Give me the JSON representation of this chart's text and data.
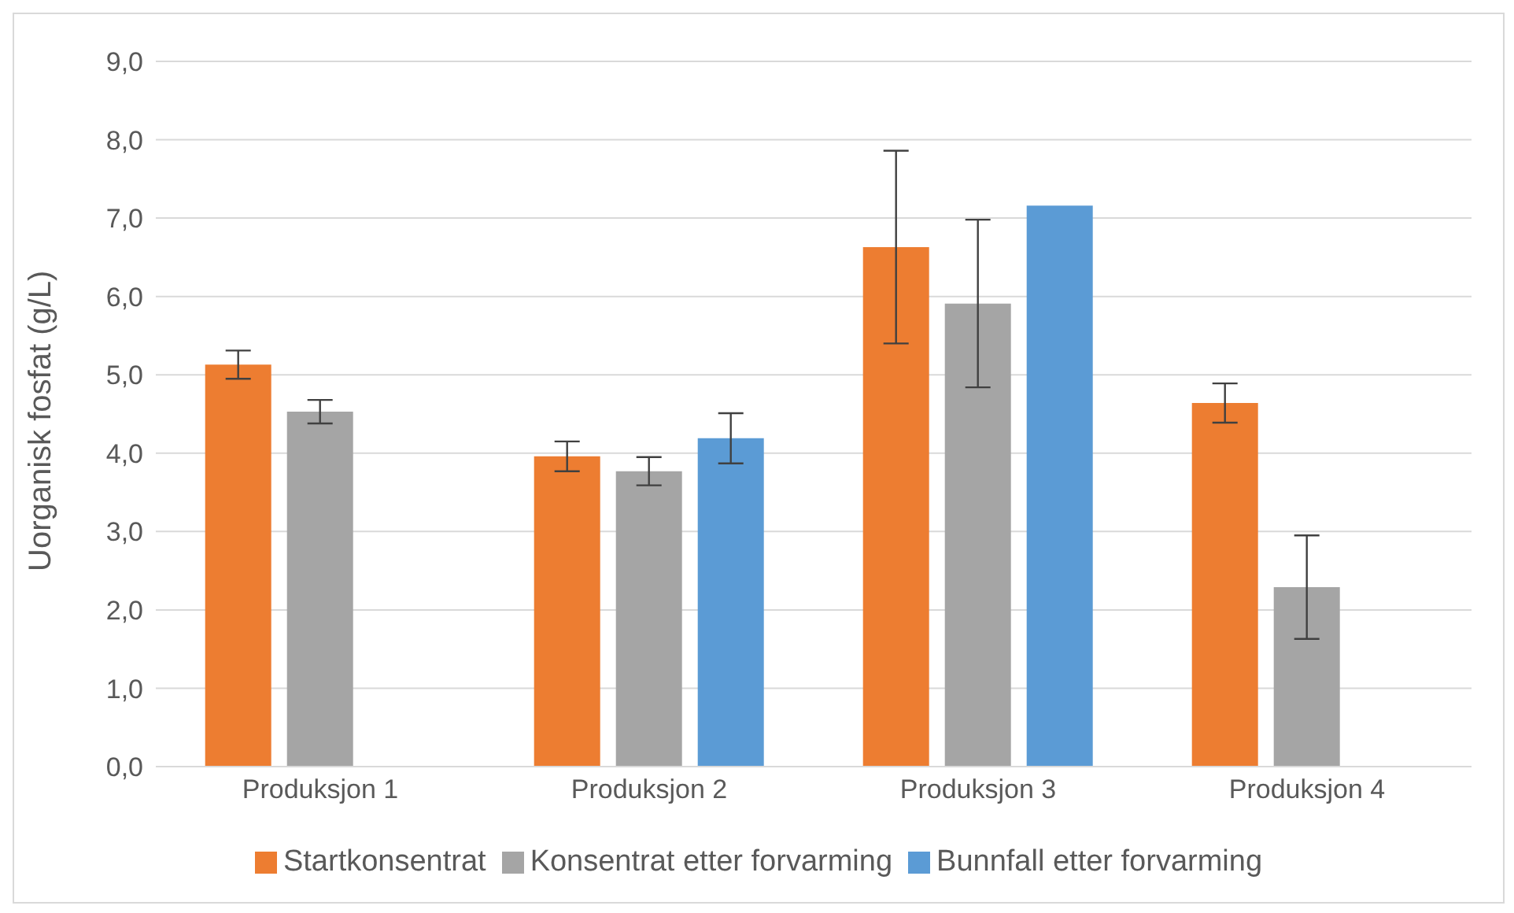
{
  "chart_data": {
    "type": "bar",
    "ylabel": "Uorganisk fosfat (g/L)",
    "categories": [
      "Produksjon 1",
      "Produksjon 2",
      "Produksjon 3",
      "Produksjon 4"
    ],
    "series": [
      {
        "name": "Startkonsentrat",
        "color": "#ed7d31",
        "values": [
          5.13,
          3.96,
          6.63,
          4.64
        ],
        "errors": [
          0.18,
          0.19,
          1.23,
          0.25
        ]
      },
      {
        "name": "Konsentrat etter forvarming",
        "color": "#a5a5a5",
        "values": [
          4.53,
          3.77,
          5.91,
          2.29
        ],
        "errors": [
          0.15,
          0.18,
          1.07,
          0.66
        ]
      },
      {
        "name": "Bunnfall etter forvarming",
        "color": "#5b9bd5",
        "values": [
          null,
          4.19,
          7.16,
          null
        ],
        "errors": [
          null,
          0.32,
          null,
          null
        ]
      }
    ],
    "ylim": [
      0,
      9
    ],
    "yticks": [
      {
        "value": 0,
        "label": "0,0"
      },
      {
        "value": 1,
        "label": "1,0"
      },
      {
        "value": 2,
        "label": "2,0"
      },
      {
        "value": 3,
        "label": "3,0"
      },
      {
        "value": 4,
        "label": "4,0"
      },
      {
        "value": 5,
        "label": "5,0"
      },
      {
        "value": 6,
        "label": "6,0"
      },
      {
        "value": 7,
        "label": "7,0"
      },
      {
        "value": 8,
        "label": "8,0"
      },
      {
        "value": 9,
        "label": "9,0"
      }
    ],
    "grid": "y",
    "legend": "bottom"
  }
}
